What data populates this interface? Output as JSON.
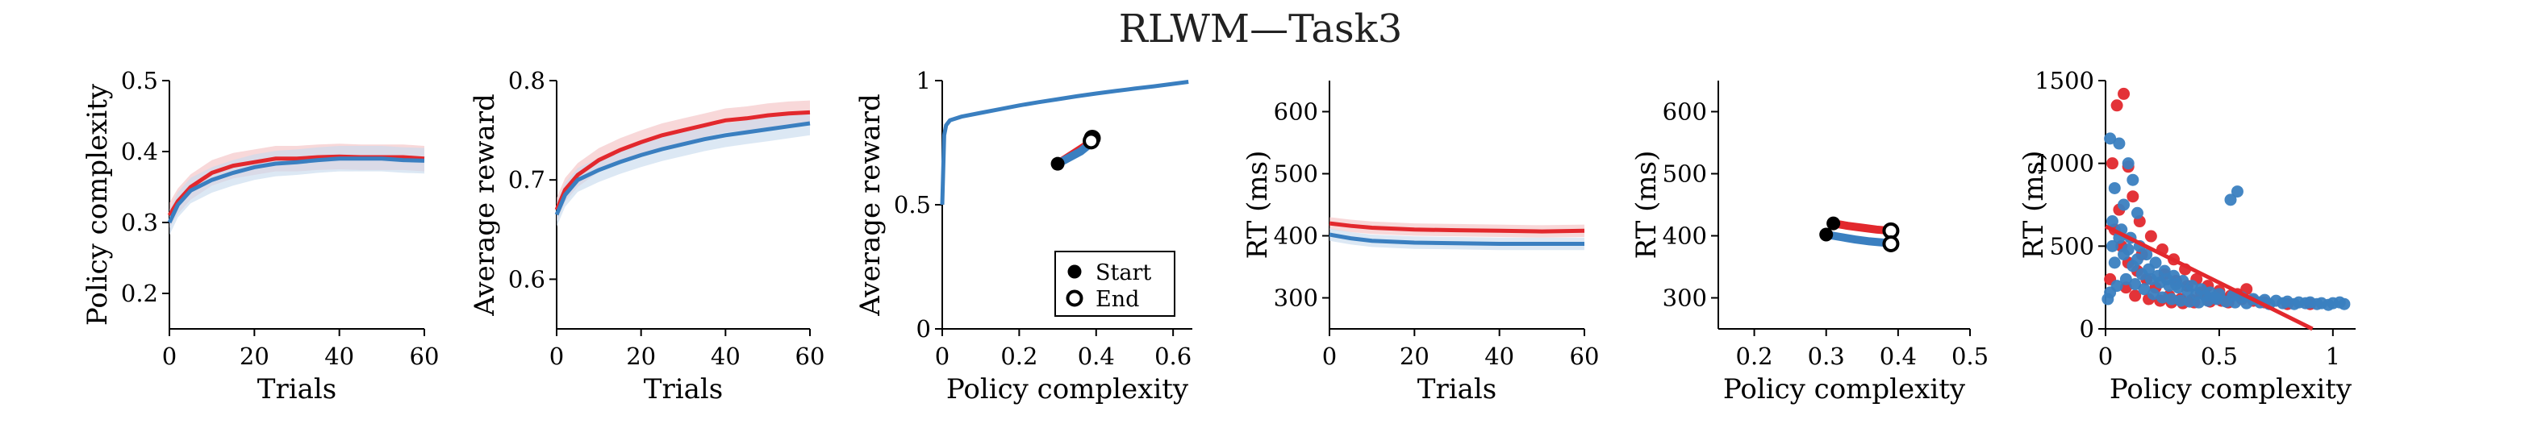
{
  "figure": {
    "title": "RLWM—Task3"
  },
  "colors": {
    "red": "#e2282d",
    "blue": "#3a7fc0",
    "red_band": "#f4c3c5",
    "blue_band": "#c9dcee"
  },
  "chart_data": [
    {
      "type": "line",
      "xlabel": "Trials",
      "ylabel": "Policy complexity",
      "xlim": [
        0,
        60
      ],
      "ylim": [
        0.15,
        0.5
      ],
      "xticks": [
        0,
        20,
        40,
        60
      ],
      "yticks": [
        0.2,
        0.3,
        0.4,
        0.5
      ],
      "xtick_labels": [
        "0",
        "20",
        "40",
        "60"
      ],
      "ytick_labels": [
        "0.2",
        "0.3",
        "0.4",
        "0.5"
      ],
      "band": 0.018,
      "series": [
        {
          "color": "red",
          "x": [
            0,
            2,
            5,
            10,
            15,
            20,
            25,
            30,
            35,
            40,
            45,
            50,
            55,
            60
          ],
          "y": [
            0.31,
            0.33,
            0.35,
            0.37,
            0.38,
            0.385,
            0.39,
            0.39,
            0.392,
            0.393,
            0.392,
            0.392,
            0.392,
            0.39
          ]
        },
        {
          "color": "blue",
          "x": [
            0,
            2,
            5,
            10,
            15,
            20,
            25,
            30,
            35,
            40,
            45,
            50,
            55,
            60
          ],
          "y": [
            0.3,
            0.325,
            0.345,
            0.36,
            0.37,
            0.378,
            0.383,
            0.385,
            0.388,
            0.39,
            0.39,
            0.39,
            0.388,
            0.387
          ]
        }
      ]
    },
    {
      "type": "line",
      "xlabel": "Trials",
      "ylabel": "Average reward",
      "xlim": [
        0,
        60
      ],
      "ylim": [
        0.55,
        0.8
      ],
      "xticks": [
        0,
        20,
        40,
        60
      ],
      "yticks": [
        0.6,
        0.7,
        0.8
      ],
      "xtick_labels": [
        "0",
        "20",
        "40",
        "60"
      ],
      "ytick_labels": [
        "0.6",
        "0.7",
        "0.8"
      ],
      "band": 0.012,
      "series": [
        {
          "color": "red",
          "x": [
            0,
            2,
            5,
            10,
            15,
            20,
            25,
            30,
            35,
            40,
            45,
            50,
            55,
            60
          ],
          "y": [
            0.67,
            0.69,
            0.705,
            0.72,
            0.73,
            0.738,
            0.745,
            0.75,
            0.755,
            0.76,
            0.762,
            0.765,
            0.767,
            0.768
          ]
        },
        {
          "color": "blue",
          "x": [
            0,
            2,
            5,
            10,
            15,
            20,
            25,
            30,
            35,
            40,
            45,
            50,
            55,
            60
          ],
          "y": [
            0.665,
            0.685,
            0.7,
            0.71,
            0.718,
            0.725,
            0.731,
            0.736,
            0.741,
            0.745,
            0.748,
            0.751,
            0.754,
            0.757
          ]
        }
      ]
    },
    {
      "type": "line",
      "xlabel": "Policy complexity",
      "ylabel": "Average reward",
      "xlim": [
        0,
        0.65
      ],
      "ylim": [
        0,
        1
      ],
      "xticks": [
        0,
        0.2,
        0.4,
        0.6
      ],
      "yticks": [
        0,
        0.5,
        1
      ],
      "xtick_labels": [
        "0",
        "0.2",
        "0.4",
        "0.6"
      ],
      "ytick_labels": [
        "0",
        "0.5",
        "1"
      ],
      "curve": {
        "color": "blue",
        "x": [
          0,
          0.005,
          0.01,
          0.02,
          0.05,
          0.1,
          0.15,
          0.2,
          0.25,
          0.3,
          0.35,
          0.4,
          0.45,
          0.5,
          0.55,
          0.6,
          0.64
        ],
        "y": [
          0.5,
          0.78,
          0.82,
          0.84,
          0.855,
          0.87,
          0.885,
          0.9,
          0.913,
          0.925,
          0.937,
          0.948,
          0.958,
          0.968,
          0.977,
          0.987,
          0.995
        ]
      },
      "trajectories": [
        {
          "color": "red",
          "x": [
            0.3,
            0.33,
            0.36,
            0.385,
            0.39
          ],
          "y": [
            0.665,
            0.695,
            0.725,
            0.75,
            0.768
          ]
        },
        {
          "color": "blue",
          "x": [
            0.3,
            0.33,
            0.36,
            0.38,
            0.387
          ],
          "y": [
            0.665,
            0.69,
            0.715,
            0.74,
            0.757
          ]
        }
      ],
      "start": {
        "x": 0.3,
        "y": 0.665
      },
      "end_points": [
        {
          "x": 0.39,
          "y": 0.768
        },
        {
          "x": 0.387,
          "y": 0.757
        }
      ],
      "legend": {
        "placement": "bottom-right",
        "start_label": "Start",
        "end_label": "End"
      }
    },
    {
      "type": "line",
      "xlabel": "Trials",
      "ylabel": "RT (ms)",
      "xlim": [
        0,
        60
      ],
      "ylim": [
        250,
        650
      ],
      "xticks": [
        0,
        20,
        40,
        60
      ],
      "yticks": [
        300,
        400,
        500,
        600
      ],
      "xtick_labels": [
        "0",
        "20",
        "40",
        "60"
      ],
      "ytick_labels": [
        "300",
        "400",
        "500",
        "600"
      ],
      "band": 10,
      "series": [
        {
          "color": "red",
          "x": [
            0,
            5,
            10,
            20,
            30,
            40,
            50,
            60
          ],
          "y": [
            420,
            416,
            413,
            410,
            409,
            408,
            407,
            408
          ]
        },
        {
          "color": "blue",
          "x": [
            0,
            5,
            10,
            20,
            30,
            40,
            50,
            60
          ],
          "y": [
            402,
            396,
            392,
            389,
            388,
            387,
            387,
            387
          ]
        }
      ]
    },
    {
      "type": "scatter",
      "xlabel": "Policy complexity",
      "ylabel": "RT (ms)",
      "xlim": [
        0.15,
        0.5
      ],
      "ylim": [
        250,
        650
      ],
      "xticks": [
        0.2,
        0.3,
        0.4,
        0.5
      ],
      "yticks": [
        300,
        400,
        500,
        600
      ],
      "xtick_labels": [
        "0.2",
        "0.3",
        "0.4",
        "0.5"
      ],
      "ytick_labels": [
        "300",
        "400",
        "500",
        "600"
      ],
      "trajectories": [
        {
          "color": "red",
          "x": [
            0.31,
            0.33,
            0.35,
            0.37,
            0.39
          ],
          "y": [
            420,
            416,
            413,
            410,
            408
          ]
        },
        {
          "color": "blue",
          "x": [
            0.3,
            0.32,
            0.34,
            0.36,
            0.38,
            0.39
          ],
          "y": [
            402,
            398,
            394,
            391,
            389,
            387
          ]
        }
      ],
      "start_points": [
        {
          "x": 0.31,
          "y": 420
        },
        {
          "x": 0.3,
          "y": 402
        }
      ],
      "end_points": [
        {
          "x": 0.39,
          "y": 408
        },
        {
          "x": 0.39,
          "y": 387
        }
      ]
    },
    {
      "type": "scatter",
      "xlabel": "Policy complexity",
      "ylabel": "RT (ms)",
      "xlim": [
        0,
        1.1
      ],
      "ylim": [
        0,
        1500
      ],
      "xticks": [
        0,
        0.5,
        1
      ],
      "yticks": [
        0,
        500,
        1000,
        1500
      ],
      "xtick_labels": [
        "0",
        "0.5",
        "1"
      ],
      "ytick_labels": [
        "0",
        "500",
        "1000",
        "1500"
      ],
      "fit_line": {
        "color": "red",
        "x": [
          0,
          0.91
        ],
        "y": [
          620,
          0
        ]
      },
      "series": [
        {
          "color": "red",
          "points": [
            [
              0.05,
              1350
            ],
            [
              0.08,
              1420
            ],
            [
              0.03,
              1000
            ],
            [
              0.1,
              980
            ],
            [
              0.12,
              800
            ],
            [
              0.06,
              720
            ],
            [
              0.15,
              650
            ],
            [
              0.2,
              560
            ],
            [
              0.25,
              480
            ],
            [
              0.3,
              420
            ],
            [
              0.35,
              360
            ],
            [
              0.4,
              300
            ],
            [
              0.45,
              260
            ],
            [
              0.5,
              230
            ],
            [
              0.55,
              200
            ],
            [
              0.6,
              180
            ],
            [
              0.65,
              170
            ],
            [
              0.7,
              160
            ],
            [
              0.8,
              150
            ],
            [
              0.9,
              150
            ],
            [
              0.18,
              300
            ],
            [
              0.22,
              250
            ],
            [
              0.28,
              200
            ],
            [
              0.33,
              180
            ],
            [
              0.38,
              175
            ],
            [
              0.42,
              220
            ],
            [
              0.48,
              190
            ],
            [
              0.52,
              175
            ],
            [
              0.58,
              210
            ],
            [
              0.62,
              240
            ],
            [
              0.1,
              400
            ],
            [
              0.14,
              350
            ],
            [
              0.07,
              500
            ],
            [
              0.04,
              600
            ],
            [
              0.16,
              450
            ],
            [
              0.26,
              330
            ],
            [
              0.31,
              290
            ],
            [
              0.36,
              260
            ],
            [
              0.44,
              200
            ],
            [
              0.54,
              160
            ],
            [
              0.02,
              300
            ],
            [
              0.09,
              250
            ],
            [
              0.13,
              200
            ],
            [
              0.19,
              180
            ],
            [
              0.24,
              170
            ],
            [
              0.29,
              160
            ],
            [
              0.34,
              155
            ],
            [
              0.39,
              160
            ],
            [
              0.46,
              165
            ],
            [
              0.51,
              170
            ]
          ]
        },
        {
          "color": "blue",
          "points": [
            [
              0.02,
              1150
            ],
            [
              0.06,
              1120
            ],
            [
              0.1,
              1000
            ],
            [
              0.12,
              900
            ],
            [
              0.58,
              830
            ],
            [
              0.55,
              780
            ],
            [
              0.04,
              850
            ],
            [
              0.08,
              750
            ],
            [
              0.14,
              700
            ],
            [
              0.03,
              650
            ],
            [
              0.07,
              600
            ],
            [
              0.11,
              550
            ],
            [
              0.15,
              500
            ],
            [
              0.18,
              450
            ],
            [
              0.22,
              400
            ],
            [
              0.26,
              350
            ],
            [
              0.3,
              320
            ],
            [
              0.34,
              290
            ],
            [
              0.38,
              260
            ],
            [
              0.42,
              240
            ],
            [
              0.46,
              220
            ],
            [
              0.5,
              210
            ],
            [
              0.56,
              200
            ],
            [
              0.6,
              190
            ],
            [
              0.65,
              180
            ],
            [
              0.7,
              175
            ],
            [
              0.75,
              170
            ],
            [
              0.8,
              165
            ],
            [
              0.85,
              160
            ],
            [
              0.9,
              160
            ],
            [
              0.95,
              155
            ],
            [
              1.0,
              155
            ],
            [
              1.05,
              150
            ],
            [
              0.01,
              180
            ],
            [
              0.02,
              220
            ],
            [
              0.05,
              260
            ],
            [
              0.09,
              300
            ],
            [
              0.13,
              270
            ],
            [
              0.17,
              240
            ],
            [
              0.21,
              210
            ],
            [
              0.25,
              190
            ],
            [
              0.29,
              180
            ],
            [
              0.33,
              170
            ],
            [
              0.37,
              165
            ],
            [
              0.41,
              160
            ],
            [
              0.45,
              170
            ],
            [
              0.49,
              180
            ],
            [
              0.53,
              165
            ],
            [
              0.57,
              160
            ],
            [
              0.62,
              155
            ],
            [
              0.68,
              160
            ],
            [
              0.72,
              150
            ],
            [
              0.78,
              155
            ],
            [
              0.83,
              150
            ],
            [
              0.88,
              155
            ],
            [
              0.93,
              150
            ],
            [
              0.98,
              145
            ],
            [
              1.03,
              160
            ],
            [
              0.04,
              400
            ],
            [
              0.08,
              450
            ],
            [
              0.12,
              380
            ],
            [
              0.16,
              330
            ],
            [
              0.2,
              300
            ],
            [
              0.24,
              280
            ],
            [
              0.28,
              260
            ],
            [
              0.32,
              250
            ],
            [
              0.36,
              230
            ],
            [
              0.4,
              210
            ],
            [
              0.44,
              200
            ],
            [
              0.48,
              190
            ],
            [
              0.03,
              500
            ],
            [
              0.06,
              550
            ],
            [
              0.1,
              480
            ],
            [
              0.14,
              420
            ],
            [
              0.19,
              360
            ],
            [
              0.23,
              320
            ],
            [
              0.27,
              300
            ],
            [
              0.31,
              270
            ]
          ]
        }
      ]
    }
  ]
}
